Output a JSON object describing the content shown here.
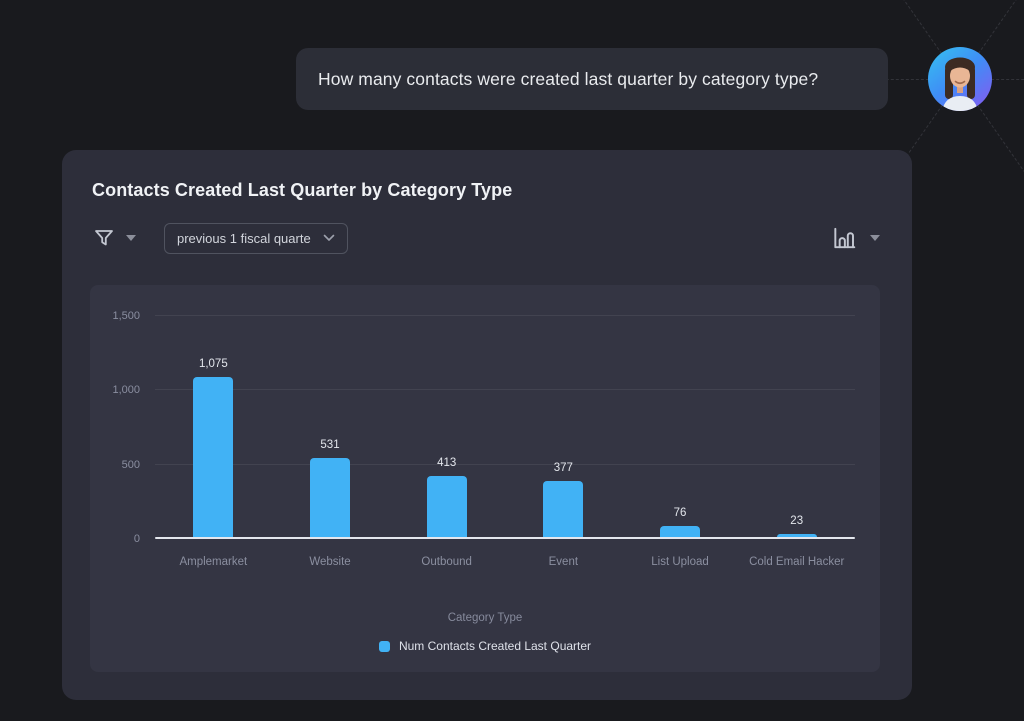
{
  "chat": {
    "question": "How many contacts were created last quarter by category type?"
  },
  "card": {
    "title": "Contacts Created Last Quarter by Category Type",
    "controls": {
      "time_range_value": "previous 1 fiscal quarte",
      "filter_icon": "funnel-icon",
      "filter_caret_icon": "caret-down-icon",
      "chart_type_icon": "bar-chart-icon",
      "chart_type_caret_icon": "caret-down-icon",
      "select_chevron_icon": "chevron-down-icon"
    }
  },
  "chart_data": {
    "type": "bar",
    "title": "Contacts Created Last Quarter by Category Type",
    "categories": [
      "Amplemarket",
      "Website",
      "Outbound",
      "Event",
      "List Upload",
      "Cold Email Hacker"
    ],
    "values": [
      1075,
      531,
      413,
      377,
      76,
      23
    ],
    "value_labels": [
      "1,075",
      "531",
      "413",
      "377",
      "76",
      "23"
    ],
    "xlabel": "Category Type",
    "ylabel": "",
    "ylim": [
      0,
      1500
    ],
    "yticks": [
      0,
      500,
      1000,
      1500
    ],
    "ytick_labels": [
      "0",
      "500",
      "1,000",
      "1,500"
    ],
    "legend_label": "Num Contacts Created Last Quarter",
    "legend_position": "bottom",
    "grid": true,
    "bar_color": "#41B2F5"
  },
  "colors": {
    "accent_blue": "#41B2F5",
    "page_background": "#191a1e",
    "card_background": "#2d2e3a",
    "panel_background": "#343543",
    "bubble_background": "#2c2e37"
  }
}
